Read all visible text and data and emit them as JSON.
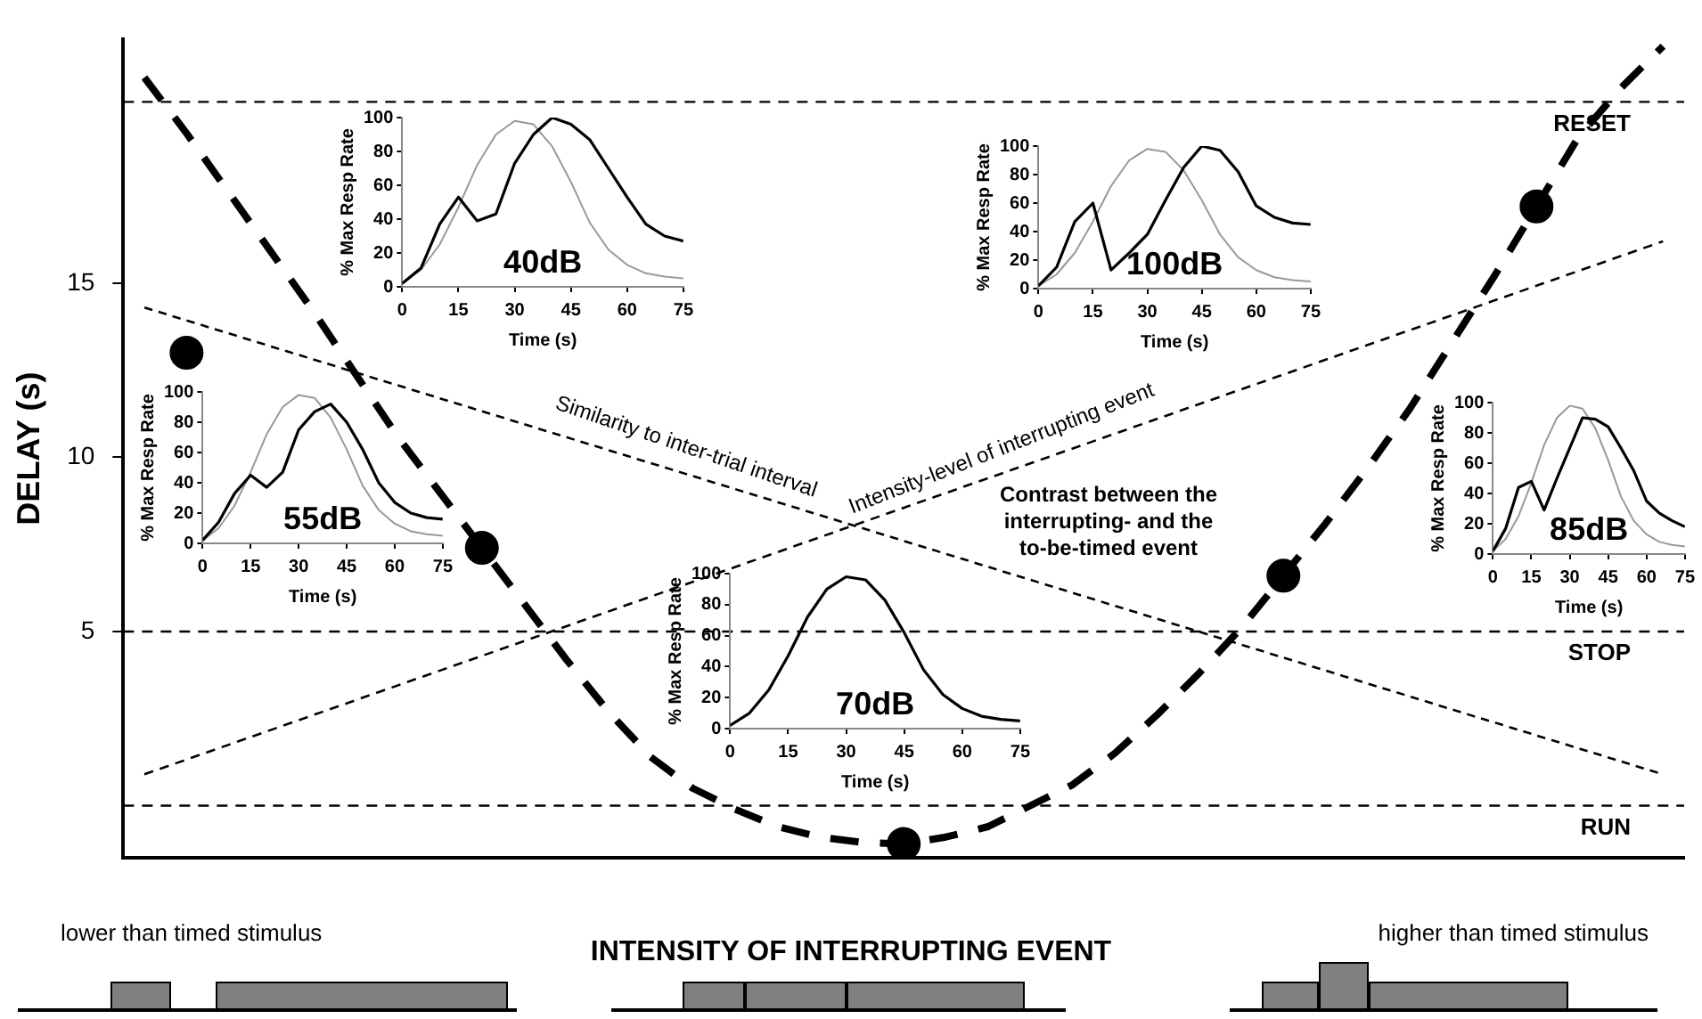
{
  "chart_data": [
    {
      "type": "line",
      "xlabel": "INTENSITY OF INTERRUPTING EVENT",
      "ylabel": "DELAY (s)",
      "categories": [
        null,
        null,
        null,
        null,
        null,
        null,
        null,
        null,
        null,
        null,
        null,
        null,
        null,
        null,
        null,
        null,
        null,
        null,
        null,
        null,
        null,
        null,
        null,
        null,
        null,
        null,
        null,
        null,
        null,
        null,
        null,
        null,
        null,
        null,
        null,
        null,
        null
      ],
      "ylim": [
        -1.5,
        22
      ],
      "yticks": [
        5,
        10,
        15
      ],
      "tick_labels": "y",
      "grid": false,
      "legend": false,
      "series": [
        {
          "type": "line",
          "color": "#000000",
          "line_style": "dashed",
          "marker": "none",
          "values": [
            20.9,
            19.3,
            17.6,
            15.9,
            14.2,
            12.4,
            10.6,
            9.0,
            7.4,
            5.8,
            4.2,
            2.7,
            1.4,
            0.5,
            -0.1,
            -0.6,
            -0.9,
            -1.05,
            -1.1,
            -0.9,
            -0.6,
            0,
            0.6,
            1.5,
            2.6,
            3.8,
            5.1,
            6.6,
            8.1,
            9.7,
            11.4,
            13.3,
            15.2,
            17.2,
            19.2,
            20.6,
            21.8
          ]
        },
        {
          "type": "scatter",
          "color": "#000000",
          "marker": "circle",
          "values": [
            null,
            13.0,
            null,
            null,
            null,
            null,
            null,
            null,
            7.4,
            null,
            null,
            null,
            null,
            null,
            null,
            null,
            null,
            null,
            -1.1,
            null,
            null,
            null,
            null,
            null,
            null,
            null,
            null,
            6.6,
            null,
            null,
            null,
            null,
            null,
            17.2,
            null,
            null,
            null
          ]
        },
        {
          "type": "line",
          "color": "#000000",
          "line_style": "dashed",
          "marker": "none",
          "values": [
            14.3,
            null,
            null,
            null,
            null,
            null,
            null,
            null,
            null,
            null,
            null,
            null,
            null,
            null,
            null,
            null,
            null,
            null,
            null,
            null,
            null,
            null,
            null,
            null,
            null,
            null,
            null,
            null,
            null,
            null,
            null,
            null,
            null,
            null,
            null,
            null,
            0.9
          ]
        },
        {
          "type": "line",
          "color": "#000000",
          "line_style": "dashed",
          "marker": "none",
          "values": [
            0.9,
            null,
            null,
            null,
            null,
            null,
            null,
            null,
            null,
            null,
            null,
            null,
            null,
            null,
            null,
            null,
            null,
            null,
            null,
            null,
            null,
            null,
            null,
            null,
            null,
            null,
            null,
            null,
            null,
            null,
            null,
            null,
            null,
            null,
            null,
            null,
            16.2
          ]
        }
      ],
      "ref_lines": [
        {
          "axis": "y",
          "value": 20.2,
          "label": "RESET",
          "line_style": "dashed"
        },
        {
          "axis": "y",
          "value": 5,
          "label": "STOP",
          "line_style": "dashed"
        },
        {
          "axis": "y",
          "value": 0,
          "label": "RUN",
          "line_style": "dashed"
        }
      ],
      "annotations": [
        "Similarity to inter-trial interval",
        "Intensity-level of interrupting event",
        "Contrast between the interrupting- and the to-be-timed event",
        "lower than timed stimulus",
        "higher than timed stimulus"
      ]
    },
    {
      "type": "line",
      "title": "40dB",
      "xlabel": "Time (s)",
      "ylabel": "% Max Resp Rate",
      "x": [
        0,
        5,
        10,
        15,
        20,
        25,
        30,
        35,
        40,
        45,
        50,
        55,
        60,
        65,
        70,
        75
      ],
      "xlim": [
        0,
        75
      ],
      "xticks": [
        0,
        15,
        30,
        45,
        60,
        75
      ],
      "ylim": [
        0,
        100
      ],
      "yticks": [
        0,
        20,
        40,
        60,
        80,
        100
      ],
      "grid": false,
      "legend": false,
      "marker": "none",
      "series": [
        {
          "color": "#000000",
          "values": [
            2,
            11,
            37,
            53,
            39,
            43,
            73,
            90,
            100,
            96,
            87,
            70,
            53,
            37,
            30,
            27
          ]
        },
        {
          "color": "#999999",
          "values": [
            2,
            10,
            25,
            47,
            72,
            90,
            98,
            96,
            83,
            62,
            38,
            22,
            13,
            8,
            6,
            5
          ]
        }
      ]
    },
    {
      "type": "line",
      "title": "100dB",
      "xlabel": "Time (s)",
      "ylabel": "% Max Resp Rate",
      "x": [
        0,
        5,
        10,
        15,
        20,
        25,
        30,
        35,
        40,
        45,
        50,
        55,
        60,
        65,
        70,
        75
      ],
      "xlim": [
        0,
        75
      ],
      "xticks": [
        0,
        15,
        30,
        45,
        60,
        75
      ],
      "ylim": [
        0,
        100
      ],
      "yticks": [
        0,
        20,
        40,
        60,
        80,
        100
      ],
      "grid": false,
      "legend": false,
      "marker": "none",
      "series": [
        {
          "color": "#000000",
          "values": [
            2,
            15,
            47,
            60,
            13,
            25,
            38,
            62,
            85,
            100,
            97,
            82,
            58,
            50,
            46,
            45
          ]
        },
        {
          "color": "#999999",
          "values": [
            2,
            10,
            25,
            47,
            72,
            90,
            98,
            96,
            83,
            62,
            38,
            22,
            13,
            8,
            6,
            5
          ]
        }
      ]
    },
    {
      "type": "line",
      "title": "55dB",
      "xlabel": "Time (s)",
      "ylabel": "% Max Resp Rate",
      "x": [
        0,
        5,
        10,
        15,
        20,
        25,
        30,
        35,
        40,
        45,
        50,
        55,
        60,
        65,
        70,
        75
      ],
      "xlim": [
        0,
        75
      ],
      "xticks": [
        0,
        15,
        30,
        45,
        60,
        75
      ],
      "ylim": [
        0,
        100
      ],
      "yticks": [
        0,
        20,
        40,
        60,
        80,
        100
      ],
      "grid": false,
      "legend": false,
      "marker": "none",
      "series": [
        {
          "color": "#000000",
          "values": [
            2,
            14,
            33,
            45,
            37,
            47,
            75,
            87,
            92,
            80,
            62,
            40,
            27,
            20,
            17,
            16
          ]
        },
        {
          "color": "#999999",
          "values": [
            2,
            10,
            25,
            47,
            72,
            90,
            98,
            96,
            83,
            62,
            38,
            22,
            13,
            8,
            6,
            5
          ]
        }
      ]
    },
    {
      "type": "line",
      "title": "85dB",
      "xlabel": "Time (s)",
      "ylabel": "% Max Resp Rate",
      "x": [
        0,
        5,
        10,
        15,
        20,
        25,
        30,
        35,
        40,
        45,
        50,
        55,
        60,
        65,
        70,
        75
      ],
      "xlim": [
        0,
        75
      ],
      "xticks": [
        0,
        15,
        30,
        45,
        60,
        75
      ],
      "ylim": [
        0,
        100
      ],
      "yticks": [
        0,
        20,
        40,
        60,
        80,
        100
      ],
      "grid": false,
      "legend": false,
      "marker": "none",
      "series": [
        {
          "color": "#000000",
          "values": [
            2,
            17,
            44,
            48,
            29,
            50,
            70,
            90,
            89,
            84,
            70,
            55,
            35,
            27,
            22,
            18
          ]
        },
        {
          "color": "#999999",
          "values": [
            2,
            10,
            25,
            47,
            72,
            90,
            98,
            96,
            83,
            62,
            38,
            22,
            13,
            8,
            6,
            5
          ]
        }
      ]
    },
    {
      "type": "line",
      "title": "70dB",
      "xlabel": "Time (s)",
      "ylabel": "% Max Resp Rate",
      "x": [
        0,
        5,
        10,
        15,
        20,
        25,
        30,
        35,
        40,
        45,
        50,
        55,
        60,
        65,
        70,
        75
      ],
      "xlim": [
        0,
        75
      ],
      "xticks": [
        0,
        15,
        30,
        45,
        60,
        75
      ],
      "ylim": [
        0,
        100
      ],
      "yticks": [
        0,
        20,
        40,
        60,
        80,
        100
      ],
      "grid": false,
      "legend": false,
      "marker": "none",
      "series": [
        {
          "color": "#000000",
          "values": [
            2,
            10,
            25,
            47,
            72,
            90,
            98,
            96,
            83,
            62,
            38,
            22,
            13,
            8,
            6,
            5
          ]
        }
      ]
    }
  ]
}
